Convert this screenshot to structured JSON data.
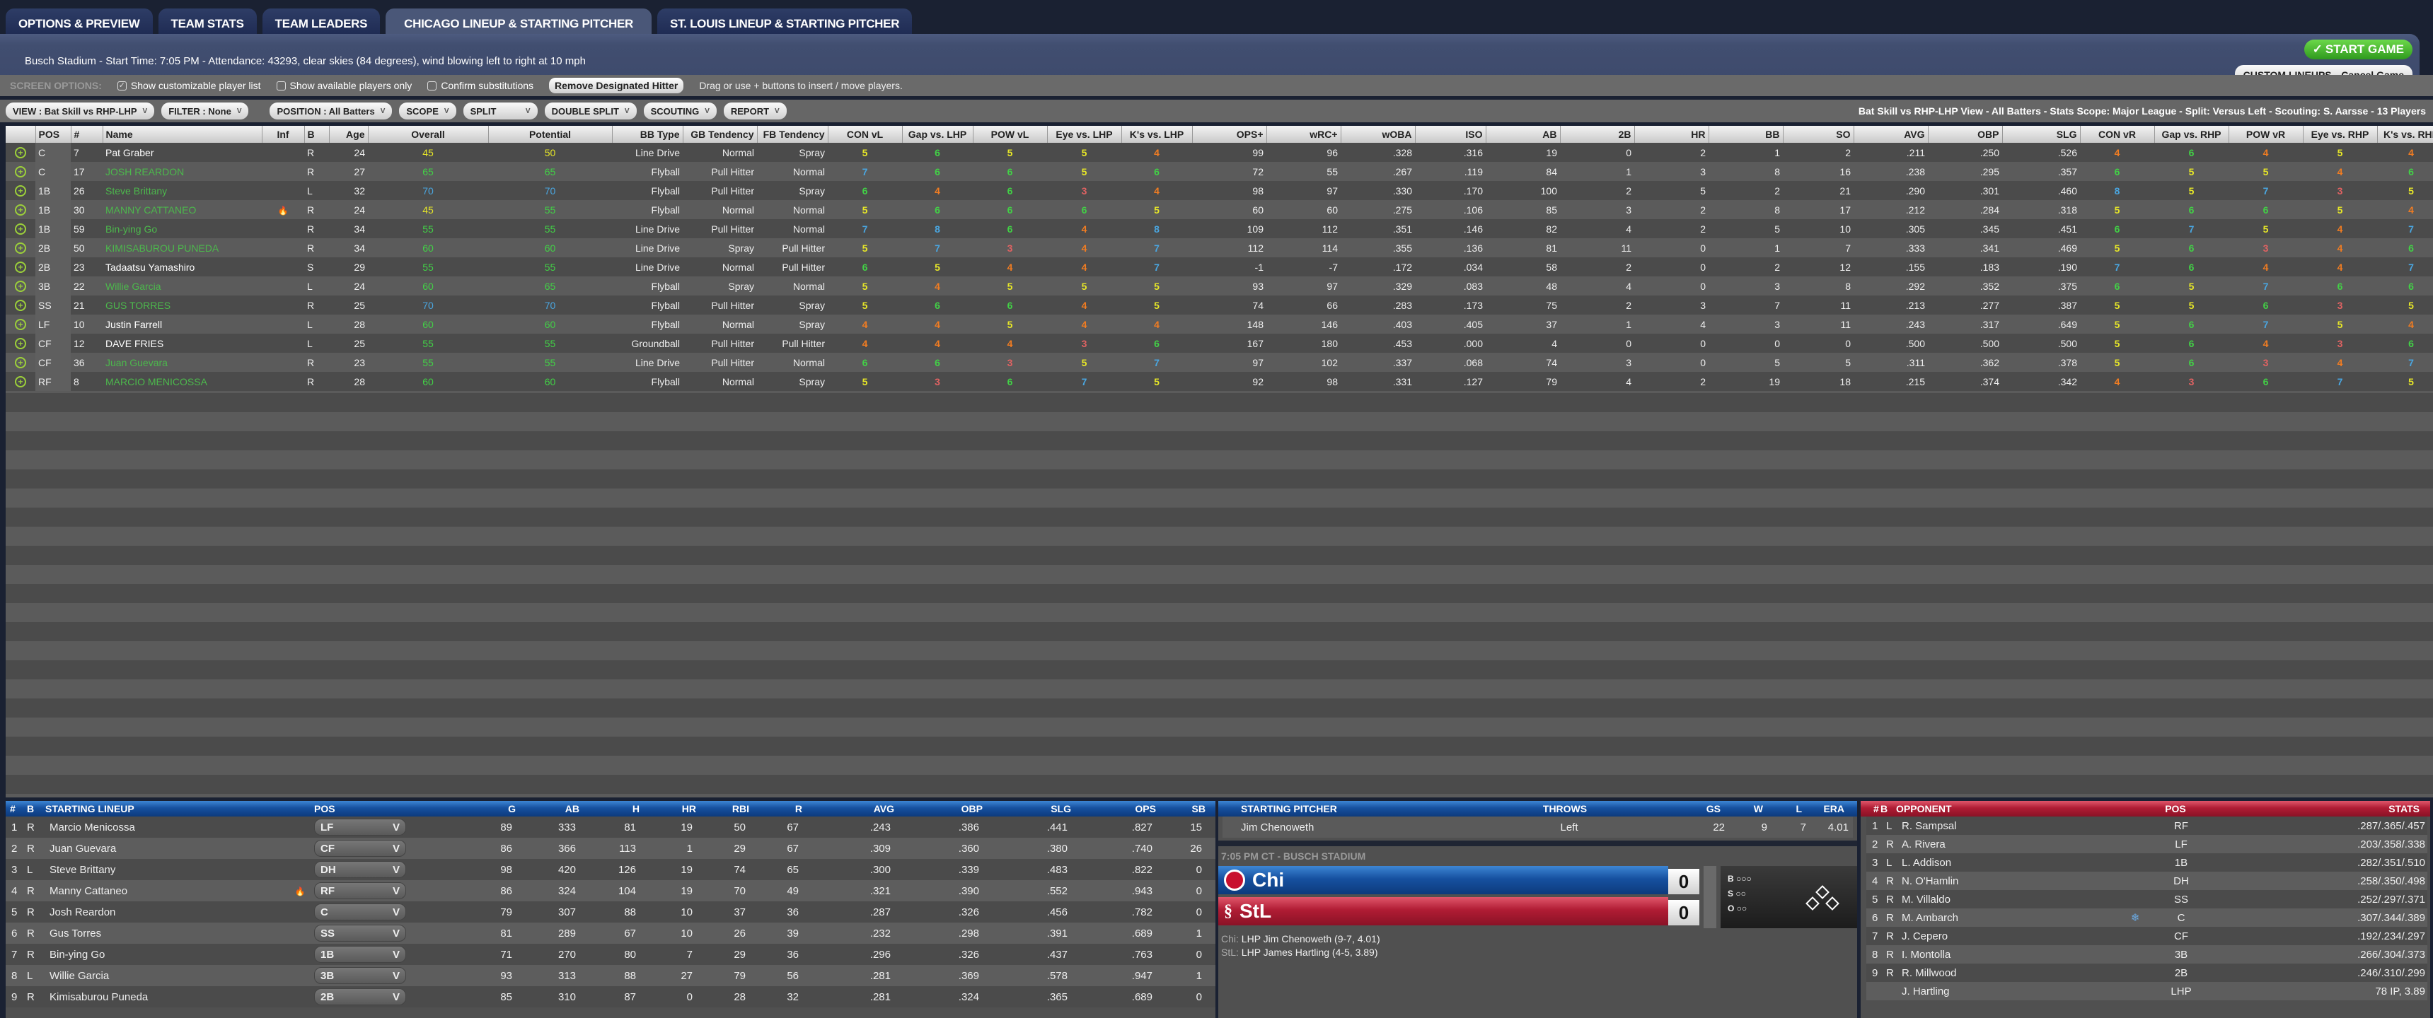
{
  "tabs": [
    "OPTIONS & PREVIEW",
    "TEAM STATS",
    "TEAM LEADERS",
    "CHICAGO  LINEUP & STARTING PITCHER",
    "ST. LOUIS LINEUP & STARTING PITCHER"
  ],
  "active_tab": 3,
  "info": "Busch Stadium - Start Time: 7:05 PM - Attendance: 43293, clear skies (84 degrees), wind blowing left to right at 10 mph",
  "buttons": {
    "start": "START GAME",
    "custom": "CUSTOM LINEUPS",
    "cancel": "Cancel Game"
  },
  "screen_options": {
    "label": "SCREEN OPTIONS:",
    "show_custom": "Show customizable player list",
    "show_custom_checked": true,
    "show_available": "Show available players only",
    "show_available_checked": false,
    "confirm": "Confirm substitutions",
    "confirm_checked": false,
    "remove_dh": "Remove Designated Hitter",
    "hint": "Drag or use + buttons to insert / move players."
  },
  "toolbar": {
    "view": "VIEW : Bat Skill vs RHP-LHP",
    "filter": "FILTER : None",
    "position": "POSITION : All Batters",
    "scope": "SCOPE",
    "split": "SPLIT",
    "double_split": "DOUBLE SPLIT",
    "scouting": "SCOUTING",
    "report": "REPORT",
    "view_info": "Bat Skill vs RHP-LHP View - All Batters - Stats Scope: Major League - Split: Versus Left - Scouting: S. Aarsse - 13 Players"
  },
  "colors": {
    "name_highlight": "#4cb84c",
    "rating": {
      "3": "#e06262",
      "4": "#f07c22",
      "5": "#e6e628",
      "6": "#42d046",
      "7": "#4aa6e0",
      "8": "#4aa6e0"
    },
    "overall_low": "#e6e628",
    "overall_mid": "#42d046",
    "overall_high": "#4aa6e0"
  },
  "columns": [
    "",
    "POS",
    "#",
    "Name",
    "Inf",
    "B",
    "Age",
    "Overall",
    "Potential",
    "BB Type",
    "GB Tendency",
    "FB Tendency",
    "CON vL",
    "Gap vs. LHP",
    "POW vL",
    "Eye vs. LHP",
    "K's vs. LHP",
    "OPS+",
    "wRC+",
    "wOBA",
    "ISO",
    "AB",
    "2B",
    "HR",
    "BB",
    "SO",
    "AVG",
    "OBP",
    "SLG",
    "CON vR",
    "Gap vs. RHP",
    "POW vR",
    "Eye vs. RHP",
    "K's vs. RHP"
  ],
  "players": [
    {
      "pos": "C",
      "num": "7",
      "name": "Pat Graber",
      "inf": "",
      "bats": "R",
      "age": "24",
      "ovr": 45,
      "pot": 50,
      "bb": "Line Drive",
      "gb": "Normal",
      "fb": "Spray",
      "vl": [
        5,
        6,
        5,
        5,
        4
      ],
      "stats": [
        "99",
        "96",
        ".328",
        ".316",
        "19",
        "0",
        "2",
        "1",
        "2",
        ".211",
        ".250",
        ".526"
      ],
      "vr": [
        4,
        6,
        4,
        5,
        4
      ],
      "hl": false
    },
    {
      "pos": "C",
      "num": "17",
      "name": "JOSH REARDON",
      "inf": "",
      "bats": "R",
      "age": "27",
      "ovr": 65,
      "pot": 65,
      "bb": "Flyball",
      "gb": "Pull Hitter",
      "fb": "Normal",
      "vl": [
        7,
        6,
        6,
        5,
        6
      ],
      "stats": [
        "72",
        "55",
        ".267",
        ".119",
        "84",
        "1",
        "3",
        "8",
        "16",
        ".238",
        ".295",
        ".357"
      ],
      "vr": [
        6,
        5,
        5,
        4,
        6
      ],
      "hl": true
    },
    {
      "pos": "1B",
      "num": "26",
      "name": "Steve Brittany",
      "inf": "",
      "bats": "L",
      "age": "32",
      "ovr": 70,
      "pot": 70,
      "bb": "Flyball",
      "gb": "Pull Hitter",
      "fb": "Spray",
      "vl": [
        6,
        4,
        6,
        3,
        4
      ],
      "stats": [
        "98",
        "97",
        ".330",
        ".170",
        "100",
        "2",
        "5",
        "2",
        "21",
        ".290",
        ".301",
        ".460"
      ],
      "vr": [
        8,
        5,
        7,
        3,
        5
      ],
      "hl": true
    },
    {
      "pos": "1B",
      "num": "30",
      "name": "MANNY CATTANEO",
      "inf": "fire",
      "bats": "R",
      "age": "24",
      "ovr": 45,
      "pot": 55,
      "bb": "Flyball",
      "gb": "Normal",
      "fb": "Normal",
      "vl": [
        5,
        6,
        6,
        6,
        5
      ],
      "stats": [
        "60",
        "60",
        ".275",
        ".106",
        "85",
        "3",
        "2",
        "8",
        "17",
        ".212",
        ".284",
        ".318"
      ],
      "vr": [
        5,
        6,
        6,
        5,
        4
      ],
      "hl": true
    },
    {
      "pos": "1B",
      "num": "59",
      "name": "Bin-ying Go",
      "inf": "",
      "bats": "R",
      "age": "34",
      "ovr": 55,
      "pot": 55,
      "bb": "Line Drive",
      "gb": "Pull Hitter",
      "fb": "Normal",
      "vl": [
        7,
        8,
        6,
        4,
        8
      ],
      "stats": [
        "109",
        "112",
        ".351",
        ".146",
        "82",
        "4",
        "2",
        "5",
        "10",
        ".305",
        ".345",
        ".451"
      ],
      "vr": [
        6,
        7,
        5,
        4,
        7
      ],
      "hl": true
    },
    {
      "pos": "2B",
      "num": "50",
      "name": "KIMISABUROU PUNEDA",
      "inf": "",
      "bats": "R",
      "age": "34",
      "ovr": 60,
      "pot": 60,
      "bb": "Line Drive",
      "gb": "Spray",
      "fb": "Pull Hitter",
      "vl": [
        5,
        7,
        3,
        4,
        7
      ],
      "stats": [
        "112",
        "114",
        ".355",
        ".136",
        "81",
        "11",
        "0",
        "1",
        "7",
        ".333",
        ".341",
        ".469"
      ],
      "vr": [
        5,
        6,
        3,
        4,
        6
      ],
      "hl": true
    },
    {
      "pos": "2B",
      "num": "23",
      "name": "Tadaatsu Yamashiro",
      "inf": "",
      "bats": "S",
      "age": "29",
      "ovr": 55,
      "pot": 55,
      "bb": "Line Drive",
      "gb": "Normal",
      "fb": "Pull Hitter",
      "vl": [
        6,
        5,
        4,
        4,
        7
      ],
      "stats": [
        "-1",
        "-7",
        ".172",
        ".034",
        "58",
        "2",
        "0",
        "2",
        "12",
        ".155",
        ".183",
        ".190"
      ],
      "vr": [
        7,
        6,
        4,
        4,
        7
      ],
      "hl": false
    },
    {
      "pos": "3B",
      "num": "22",
      "name": "Willie Garcia",
      "inf": "",
      "bats": "L",
      "age": "24",
      "ovr": 60,
      "pot": 65,
      "bb": "Flyball",
      "gb": "Spray",
      "fb": "Normal",
      "vl": [
        5,
        4,
        5,
        5,
        5
      ],
      "stats": [
        "93",
        "97",
        ".329",
        ".083",
        "48",
        "4",
        "0",
        "3",
        "8",
        ".292",
        ".352",
        ".375"
      ],
      "vr": [
        6,
        5,
        7,
        6,
        6
      ],
      "hl": true
    },
    {
      "pos": "SS",
      "num": "21",
      "name": "GUS TORRES",
      "inf": "",
      "bats": "R",
      "age": "25",
      "ovr": 70,
      "pot": 70,
      "bb": "Flyball",
      "gb": "Pull Hitter",
      "fb": "Spray",
      "vl": [
        5,
        6,
        6,
        4,
        5
      ],
      "stats": [
        "74",
        "66",
        ".283",
        ".173",
        "75",
        "2",
        "3",
        "7",
        "11",
        ".213",
        ".277",
        ".387"
      ],
      "vr": [
        5,
        5,
        6,
        3,
        5
      ],
      "hl": true
    },
    {
      "pos": "LF",
      "num": "10",
      "name": "Justin Farrell",
      "inf": "",
      "bats": "L",
      "age": "28",
      "ovr": 60,
      "pot": 60,
      "bb": "Flyball",
      "gb": "Normal",
      "fb": "Spray",
      "vl": [
        4,
        4,
        5,
        4,
        4
      ],
      "stats": [
        "148",
        "146",
        ".403",
        ".405",
        "37",
        "1",
        "4",
        "3",
        "11",
        ".243",
        ".317",
        ".649"
      ],
      "vr": [
        5,
        6,
        7,
        5,
        4
      ],
      "hl": false
    },
    {
      "pos": "CF",
      "num": "12",
      "name": "DAVE FRIES",
      "inf": "",
      "bats": "L",
      "age": "25",
      "ovr": 55,
      "pot": 55,
      "bb": "Groundball",
      "gb": "Pull Hitter",
      "fb": "Pull Hitter",
      "vl": [
        4,
        4,
        4,
        3,
        6
      ],
      "stats": [
        "167",
        "180",
        ".453",
        ".000",
        "4",
        "0",
        "0",
        "0",
        "0",
        ".500",
        ".500",
        ".500"
      ],
      "vr": [
        5,
        6,
        4,
        3,
        6
      ],
      "hl": false
    },
    {
      "pos": "CF",
      "num": "36",
      "name": "Juan Guevara",
      "inf": "",
      "bats": "R",
      "age": "23",
      "ovr": 55,
      "pot": 55,
      "bb": "Line Drive",
      "gb": "Pull Hitter",
      "fb": "Normal",
      "vl": [
        6,
        6,
        3,
        5,
        7
      ],
      "stats": [
        "97",
        "102",
        ".337",
        ".068",
        "74",
        "3",
        "0",
        "5",
        "5",
        ".311",
        ".362",
        ".378"
      ],
      "vr": [
        5,
        6,
        3,
        4,
        7
      ],
      "hl": true
    },
    {
      "pos": "RF",
      "num": "8",
      "name": "MARCIO MENICOSSA",
      "inf": "",
      "bats": "R",
      "age": "28",
      "ovr": 60,
      "pot": 60,
      "bb": "Flyball",
      "gb": "Normal",
      "fb": "Spray",
      "vl": [
        5,
        3,
        6,
        7,
        5
      ],
      "stats": [
        "92",
        "98",
        ".331",
        ".127",
        "79",
        "4",
        "2",
        "19",
        "18",
        ".215",
        ".374",
        ".342"
      ],
      "vr": [
        4,
        3,
        6,
        7,
        5
      ],
      "hl": true
    }
  ],
  "lineup": {
    "headers": [
      "#",
      "B",
      "STARTING LINEUP",
      "POS",
      "G",
      "AB",
      "H",
      "HR",
      "RBI",
      "R",
      "AVG",
      "OBP",
      "SLG",
      "OPS",
      "SB"
    ],
    "rows": [
      [
        "1",
        "R",
        "Marcio Menicossa",
        "",
        "LF",
        "89",
        "333",
        "81",
        "19",
        "50",
        "67",
        ".243",
        ".386",
        ".441",
        ".827",
        "15"
      ],
      [
        "2",
        "R",
        "Juan Guevara",
        "",
        "CF",
        "86",
        "366",
        "113",
        "1",
        "29",
        "67",
        ".309",
        ".360",
        ".380",
        ".740",
        "26"
      ],
      [
        "3",
        "L",
        "Steve Brittany",
        "",
        "DH",
        "98",
        "420",
        "126",
        "19",
        "74",
        "65",
        ".300",
        ".339",
        ".483",
        ".822",
        "0"
      ],
      [
        "4",
        "R",
        "Manny Cattaneo",
        "fire",
        "RF",
        "86",
        "324",
        "104",
        "19",
        "70",
        "49",
        ".321",
        ".390",
        ".552",
        ".943",
        "0"
      ],
      [
        "5",
        "R",
        "Josh Reardon",
        "",
        "C",
        "79",
        "307",
        "88",
        "10",
        "37",
        "36",
        ".287",
        ".326",
        ".456",
        ".782",
        "0"
      ],
      [
        "6",
        "R",
        "Gus Torres",
        "",
        "SS",
        "81",
        "289",
        "67",
        "10",
        "26",
        "39",
        ".232",
        ".298",
        ".391",
        ".689",
        "1"
      ],
      [
        "7",
        "R",
        "Bin-ying Go",
        "",
        "1B",
        "71",
        "270",
        "80",
        "7",
        "29",
        "36",
        ".296",
        ".326",
        ".437",
        ".763",
        "0"
      ],
      [
        "8",
        "L",
        "Willie Garcia",
        "",
        "3B",
        "93",
        "313",
        "88",
        "27",
        "79",
        "56",
        ".281",
        ".369",
        ".578",
        ".947",
        "1"
      ],
      [
        "9",
        "R",
        "Kimisaburou Puneda",
        "",
        "2B",
        "85",
        "310",
        "87",
        "0",
        "28",
        "32",
        ".281",
        ".324",
        ".365",
        ".689",
        "0"
      ]
    ]
  },
  "pitcher": {
    "headers": [
      "STARTING PITCHER",
      "THROWS",
      "GS",
      "W",
      "L",
      "ERA"
    ],
    "row": [
      "Jim Chenoweth",
      "Left",
      "22",
      "9",
      "7",
      "4.01"
    ]
  },
  "scoreboard": {
    "title": "7:05 PM CT - BUSCH STADIUM",
    "away": "Chi",
    "home": "StL",
    "away_score": "0",
    "home_score": "0",
    "balls_label": "B",
    "strikes_label": "S",
    "outs_label": "O",
    "away_color": "#1c5eb0",
    "home_color": "#b81c36",
    "probables": [
      {
        "team": "Chi:",
        "text": "LHP Jim Chenoweth (9-7, 4.01)"
      },
      {
        "team": "StL:",
        "text": "LHP James Hartling (4-5, 3.89)"
      }
    ]
  },
  "opponent": {
    "headers": [
      "#",
      "B",
      "OPPONENT",
      "POS",
      "STATS"
    ],
    "rows": [
      [
        "1",
        "L",
        "R. Sampsal",
        "",
        "RF",
        ".287/.365/.457"
      ],
      [
        "2",
        "R",
        "A. Rivera",
        "",
        "LF",
        ".203/.358/.338"
      ],
      [
        "3",
        "L",
        "L. Addison",
        "",
        "1B",
        ".282/.351/.510"
      ],
      [
        "4",
        "R",
        "N. O'Hamlin",
        "",
        "DH",
        ".258/.350/.498"
      ],
      [
        "5",
        "R",
        "M. Villaldo",
        "",
        "SS",
        ".252/.297/.371"
      ],
      [
        "6",
        "R",
        "M. Ambarch",
        "ice",
        "C",
        ".307/.344/.389"
      ],
      [
        "7",
        "R",
        "J. Cepero",
        "",
        "CF",
        ".192/.234/.297"
      ],
      [
        "8",
        "R",
        "I. Montolla",
        "",
        "3B",
        ".266/.304/.373"
      ],
      [
        "9",
        "R",
        "R. Millwood",
        "",
        "2B",
        ".246/.310/.299"
      ],
      [
        "",
        "",
        "J. Hartling",
        "",
        "LHP",
        "78 IP, 3.89"
      ]
    ]
  }
}
